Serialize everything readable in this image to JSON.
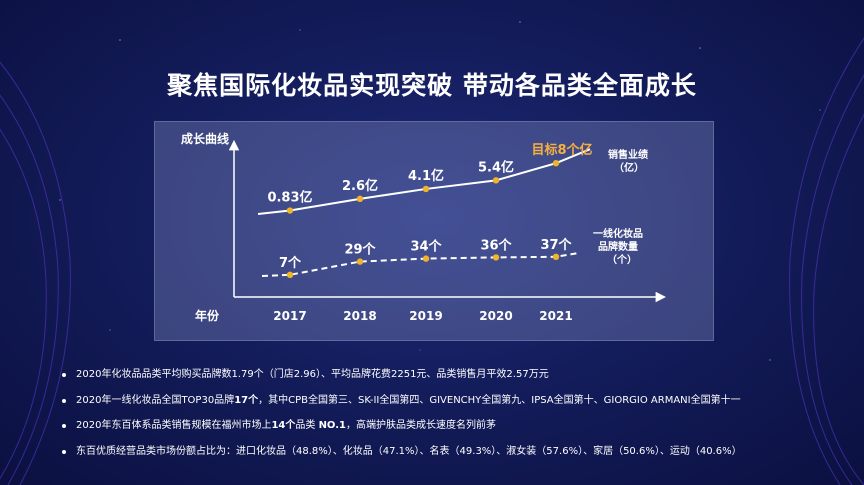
{
  "title": "聚焦国际化妆品实现突破 带动各品类全面成长",
  "chart_data": {
    "type": "line",
    "ylabel": "成长曲线",
    "xlabel": "年份",
    "categories": [
      "2017",
      "2018",
      "2019",
      "2020",
      "2021"
    ],
    "series": [
      {
        "name": "销售业绩（亿）",
        "values": [
          0.83,
          2.6,
          4.1,
          5.4,
          8
        ],
        "labels": [
          "0.83亿",
          "2.6亿",
          "4.1亿",
          "5.4亿",
          "目标8个亿"
        ]
      },
      {
        "name": "一线化妆品品牌数量（个）",
        "values": [
          7,
          29,
          34,
          36,
          37
        ],
        "labels": [
          "7个",
          "29个",
          "34个",
          "36个",
          "37个"
        ]
      }
    ],
    "legend_sales_1": "销售业绩",
    "legend_sales_2": "（亿）",
    "legend_brands_1": "一线化妆品",
    "legend_brands_2": "品牌数量",
    "legend_brands_3": "（个）",
    "colors": {
      "line": "#ffffff",
      "point": "#f0b429",
      "highlight": "#f5b041"
    }
  },
  "bullets": [
    {
      "parts": [
        {
          "t": "2020年化妆品品类平均购买品牌数1.79个（门店2.96）、平均品牌花费2251元、品类销售月平效2.57万元",
          "b": false
        }
      ]
    },
    {
      "parts": [
        {
          "t": "2020年一线化妆品全国TOP30品牌",
          "b": false
        },
        {
          "t": "17个",
          "b": true
        },
        {
          "t": "，其中CPB全国第三、SK-II全国第四、GIVENCHY全国第九、IPSA全国第十、GIORGIO ARMANI全国第十一",
          "b": false
        }
      ]
    },
    {
      "parts": [
        {
          "t": "2020年东百体系品类销售规模在福州市场上",
          "b": false
        },
        {
          "t": "14个",
          "b": true
        },
        {
          "t": "品类 ",
          "b": false
        },
        {
          "t": "NO.1",
          "b": true
        },
        {
          "t": "，高端护肤品类成长速度名列前茅",
          "b": false
        }
      ]
    },
    {
      "parts": [
        {
          "t": "东百优质经营品类市场份额占比为：进口化妆品（48.8%）、化妆品（47.1%）、名表（49.3%）、淑女装（57.6%）、家居（50.6%）、运动（40.6%）",
          "b": false
        }
      ]
    }
  ]
}
